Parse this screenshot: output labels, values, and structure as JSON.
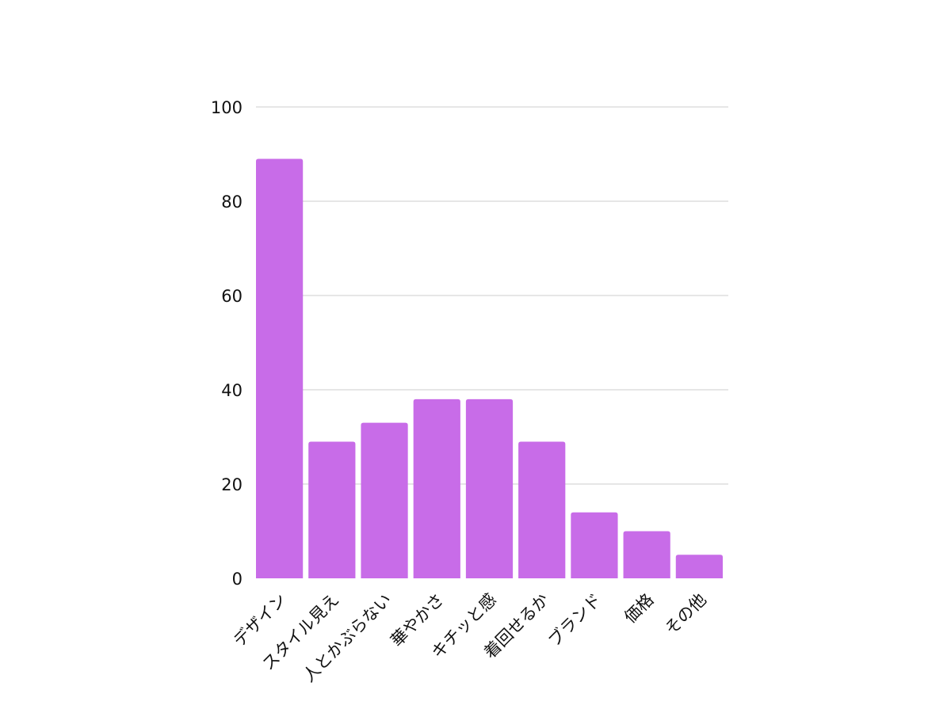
{
  "chart_data": {
    "type": "bar",
    "categories": [
      "デザイン",
      "スタイル見え",
      "人とかぶらない",
      "華やかさ",
      "キチッと感",
      "着回せるか",
      "ブランド",
      "価格",
      "その他"
    ],
    "values": [
      89,
      29,
      33,
      38,
      38,
      29,
      14,
      10,
      5
    ],
    "title": "",
    "xlabel": "",
    "ylabel": "",
    "ylim": [
      0,
      100
    ],
    "yticks": [
      0,
      20,
      40,
      60,
      80,
      100
    ],
    "grid": true,
    "legend": "none",
    "bar_color": "#c86ce8",
    "grid_color": "#cccccc"
  }
}
